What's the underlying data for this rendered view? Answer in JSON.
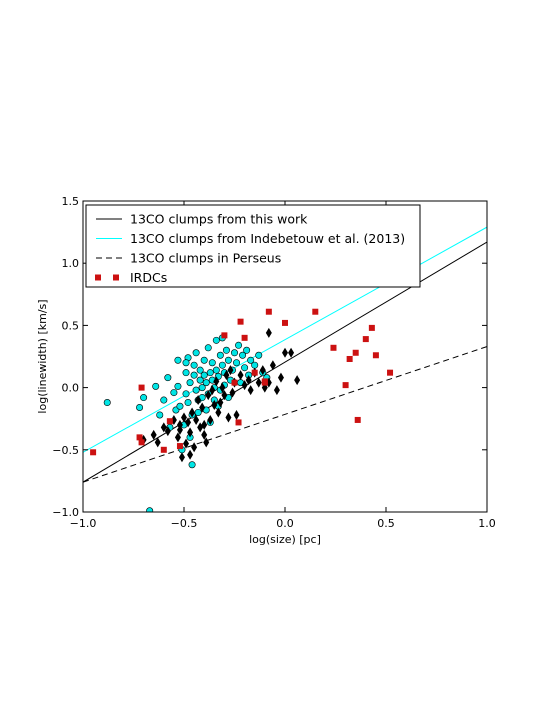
{
  "chart_data": {
    "type": "scatter",
    "title": "",
    "xlabel": "log(size) [pc]",
    "ylabel": "log(linewidth) [km/s]",
    "xlim": [
      -1.0,
      1.0
    ],
    "ylim": [
      -1.0,
      1.5
    ],
    "xticks": [
      -1.0,
      -0.5,
      0.0,
      0.5,
      1.0
    ],
    "yticks": [
      -1.0,
      -0.5,
      0.0,
      0.5,
      1.0,
      1.5
    ],
    "xtick_labels": [
      "−1.0",
      "−0.5",
      "0.0",
      "0.5",
      "1.0"
    ],
    "ytick_labels": [
      "−1.0",
      "−0.5",
      "0.0",
      "0.5",
      "1.0",
      "1.5"
    ],
    "grid": false,
    "legend_position": "top-left",
    "lines": [
      {
        "name": "13CO clumps from this work",
        "color": "#000000",
        "style": "solid",
        "x": [
          -1.0,
          1.0
        ],
        "y": [
          -0.76,
          1.17
        ]
      },
      {
        "name": "13CO clumps from Indebetouw et al. (2013)",
        "color": "#00ffff",
        "style": "solid",
        "x": [
          -1.0,
          1.0
        ],
        "y": [
          -0.52,
          1.29
        ]
      },
      {
        "name": "13CO clumps in Perseus",
        "color": "#000000",
        "style": "dashed",
        "x": [
          -1.0,
          1.0
        ],
        "y": [
          -0.76,
          0.33
        ]
      }
    ],
    "series": [
      {
        "name": "",
        "marker": "circle",
        "color": "#00e5e5",
        "points": [
          [
            -0.88,
            -0.12
          ],
          [
            -0.72,
            -0.16
          ],
          [
            -0.7,
            -0.08
          ],
          [
            -0.67,
            -0.99
          ],
          [
            -0.64,
            0.01
          ],
          [
            -0.62,
            -0.22
          ],
          [
            -0.6,
            -0.1
          ],
          [
            -0.58,
            0.08
          ],
          [
            -0.57,
            -0.32
          ],
          [
            -0.55,
            -0.04
          ],
          [
            -0.54,
            -0.18
          ],
          [
            -0.53,
            0.22
          ],
          [
            -0.53,
            0.01
          ],
          [
            -0.52,
            -0.15
          ],
          [
            -0.51,
            -0.5
          ],
          [
            -0.5,
            -0.3
          ],
          [
            -0.49,
            0.12
          ],
          [
            -0.49,
            -0.05
          ],
          [
            -0.48,
            0.24
          ],
          [
            -0.48,
            -0.12
          ],
          [
            -0.47,
            -0.4
          ],
          [
            -0.47,
            0.04
          ],
          [
            -0.46,
            -0.62
          ],
          [
            -0.46,
            -0.22
          ],
          [
            -0.45,
            0.18
          ],
          [
            -0.45,
            0.1
          ],
          [
            -0.44,
            -0.02
          ],
          [
            -0.44,
            0.28
          ],
          [
            -0.43,
            -0.1
          ],
          [
            -0.43,
            -0.2
          ],
          [
            -0.42,
            0.06
          ],
          [
            -0.42,
            0.14
          ],
          [
            -0.41,
            0.0
          ],
          [
            -0.41,
            -0.08
          ],
          [
            -0.4,
            0.1
          ],
          [
            -0.4,
            0.22
          ],
          [
            -0.39,
            -0.18
          ],
          [
            -0.39,
            0.04
          ],
          [
            -0.38,
            0.32
          ],
          [
            -0.38,
            -0.05
          ],
          [
            -0.37,
            0.12
          ],
          [
            -0.37,
            -0.28
          ],
          [
            -0.36,
            0.2
          ],
          [
            -0.36,
            0.06
          ],
          [
            -0.35,
            -0.1
          ],
          [
            -0.35,
            0.0
          ],
          [
            -0.34,
            0.14
          ],
          [
            -0.34,
            0.38
          ],
          [
            -0.33,
            -0.15
          ],
          [
            -0.33,
            0.09
          ],
          [
            -0.32,
            0.26
          ],
          [
            -0.32,
            -0.02
          ],
          [
            -0.31,
            0.4
          ],
          [
            -0.31,
            0.18
          ],
          [
            -0.3,
            0.02
          ],
          [
            -0.3,
            0.12
          ],
          [
            -0.29,
            0.3
          ],
          [
            -0.28,
            -0.08
          ],
          [
            -0.28,
            0.22
          ],
          [
            -0.27,
            0.06
          ],
          [
            -0.26,
            0.14
          ],
          [
            -0.25,
            0.28
          ],
          [
            -0.24,
            0.2
          ],
          [
            -0.23,
            0.34
          ],
          [
            -0.22,
            0.04
          ],
          [
            -0.21,
            0.26
          ],
          [
            -0.2,
            0.16
          ],
          [
            -0.19,
            0.3
          ],
          [
            -0.18,
            0.1
          ],
          [
            -0.17,
            0.22
          ],
          [
            -0.15,
            0.18
          ],
          [
            -0.13,
            0.26
          ],
          [
            -0.11,
            0.12
          ],
          [
            -0.09,
            0.08
          ],
          [
            -0.49,
            0.2
          ]
        ]
      },
      {
        "name": "",
        "marker": "diamond",
        "color": "#000000",
        "points": [
          [
            -0.7,
            -0.42
          ],
          [
            -0.65,
            -0.38
          ],
          [
            -0.63,
            -0.44
          ],
          [
            -0.6,
            -0.32
          ],
          [
            -0.58,
            -0.35
          ],
          [
            -0.55,
            -0.26
          ],
          [
            -0.53,
            -0.4
          ],
          [
            -0.52,
            -0.3
          ],
          [
            -0.51,
            -0.56
          ],
          [
            -0.5,
            -0.24
          ],
          [
            -0.49,
            -0.45
          ],
          [
            -0.48,
            -0.28
          ],
          [
            -0.47,
            -0.36
          ],
          [
            -0.47,
            -0.54
          ],
          [
            -0.46,
            -0.2
          ],
          [
            -0.45,
            -0.48
          ],
          [
            -0.44,
            -0.26
          ],
          [
            -0.43,
            -0.1
          ],
          [
            -0.42,
            -0.32
          ],
          [
            -0.41,
            -0.16
          ],
          [
            -0.4,
            -0.38
          ],
          [
            -0.39,
            -0.44
          ],
          [
            -0.38,
            -0.06
          ],
          [
            -0.37,
            -0.26
          ],
          [
            -0.36,
            -0.02
          ],
          [
            -0.35,
            -0.14
          ],
          [
            -0.34,
            0.05
          ],
          [
            -0.33,
            -0.2
          ],
          [
            -0.32,
            -0.12
          ],
          [
            -0.31,
            0.0
          ],
          [
            -0.3,
            -0.06
          ],
          [
            -0.29,
            0.1
          ],
          [
            -0.28,
            -0.24
          ],
          [
            -0.27,
            0.14
          ],
          [
            -0.26,
            -0.04
          ],
          [
            -0.25,
            0.04
          ],
          [
            -0.24,
            -0.22
          ],
          [
            -0.22,
            0.1
          ],
          [
            -0.2,
            0.02
          ],
          [
            -0.18,
            0.06
          ],
          [
            -0.17,
            -0.02
          ],
          [
            -0.15,
            0.12
          ],
          [
            -0.13,
            0.04
          ],
          [
            -0.11,
            0.14
          ],
          [
            -0.1,
            0.0
          ],
          [
            -0.08,
            0.04
          ],
          [
            -0.06,
            0.18
          ],
          [
            -0.04,
            -0.02
          ],
          [
            -0.02,
            0.08
          ],
          [
            0.0,
            0.28
          ],
          [
            -0.08,
            0.44
          ],
          [
            0.03,
            0.28
          ],
          [
            0.06,
            0.06
          ],
          [
            -0.52,
            -0.34
          ],
          [
            -0.4,
            -0.3
          ]
        ]
      },
      {
        "name": "IRDCs",
        "marker": "square",
        "color": "#cc1111",
        "points": [
          [
            -0.95,
            -0.52
          ],
          [
            -0.72,
            -0.4
          ],
          [
            -0.71,
            -0.44
          ],
          [
            -0.71,
            0.0
          ],
          [
            -0.6,
            -0.5
          ],
          [
            -0.57,
            -0.27
          ],
          [
            -0.52,
            -0.47
          ],
          [
            -0.3,
            0.42
          ],
          [
            -0.25,
            0.04
          ],
          [
            -0.23,
            -0.28
          ],
          [
            -0.22,
            0.53
          ],
          [
            -0.2,
            0.4
          ],
          [
            -0.15,
            0.12
          ],
          [
            -0.1,
            0.05
          ],
          [
            -0.1,
            0.04
          ],
          [
            -0.08,
            0.61
          ],
          [
            0.0,
            0.52
          ],
          [
            0.15,
            0.61
          ],
          [
            0.24,
            0.32
          ],
          [
            0.3,
            0.02
          ],
          [
            0.32,
            0.23
          ],
          [
            0.35,
            0.28
          ],
          [
            0.36,
            -0.26
          ],
          [
            0.4,
            0.39
          ],
          [
            0.43,
            0.48
          ],
          [
            0.45,
            0.26
          ],
          [
            0.52,
            0.12
          ]
        ]
      }
    ]
  },
  "legend": [
    {
      "label": "13CO clumps from this work",
      "kind": "line",
      "color": "#000000",
      "style": "solid"
    },
    {
      "label": "13CO clumps from Indebetouw et al. (2013)",
      "kind": "line",
      "color": "#00ffff",
      "style": "solid"
    },
    {
      "label": "13CO clumps in Perseus",
      "kind": "line",
      "color": "#000000",
      "style": "dashed"
    },
    {
      "label": "IRDCs",
      "kind": "square",
      "color": "#cc1111"
    }
  ]
}
